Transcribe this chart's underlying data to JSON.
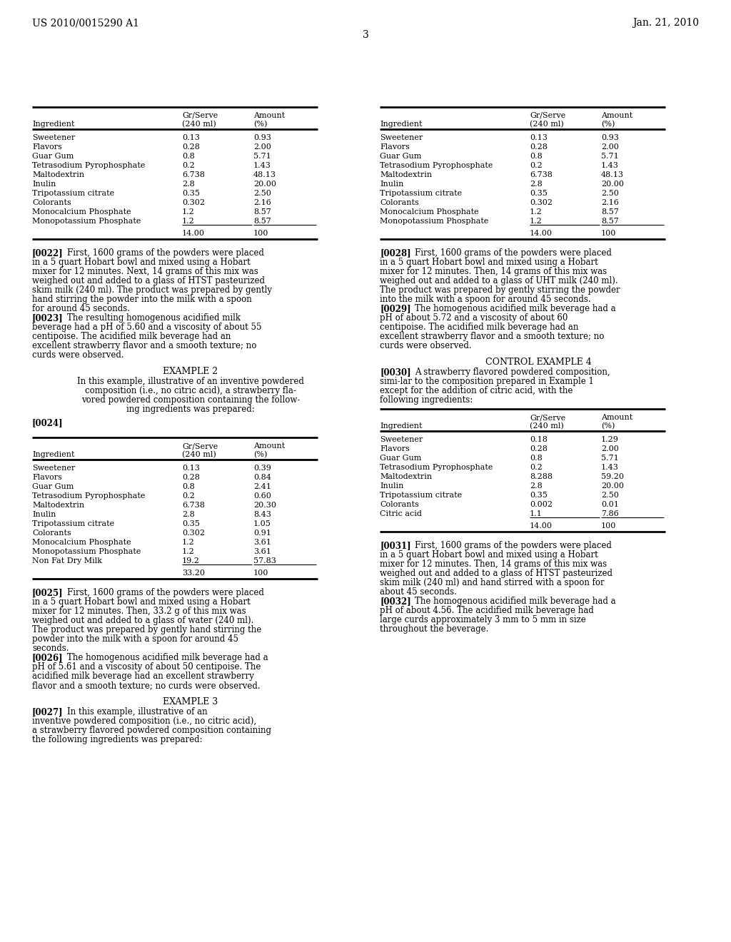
{
  "header_left": "US 2010/0015290 A1",
  "header_right": "Jan. 21, 2010",
  "page_number": "3",
  "bg_color": "#ffffff",
  "table1_headers": [
    "Ingredient",
    "Gr/Serve\n(240 ml)",
    "Amount\n(%)"
  ],
  "table1_rows": [
    [
      "Sweetener",
      "0.13",
      "0.93"
    ],
    [
      "Flavors",
      "0.28",
      "2.00"
    ],
    [
      "Guar Gum",
      "0.8",
      "5.71"
    ],
    [
      "Tetrasodium Pyrophosphate",
      "0.2",
      "1.43"
    ],
    [
      "Maltodextrin",
      "6.738",
      "48.13"
    ],
    [
      "Inulin",
      "2.8",
      "20.00"
    ],
    [
      "Tripotassium citrate",
      "0.35",
      "2.50"
    ],
    [
      "Colorants",
      "0.302",
      "2.16"
    ],
    [
      "Monocalcium Phosphate",
      "1.2",
      "8.57"
    ],
    [
      "Monopotassium Phosphate",
      "1.2",
      "8.57"
    ]
  ],
  "table1_total": [
    "",
    "14.00",
    "100"
  ],
  "para_0022": "[0022]    First, 1600 grams of the powders were placed in a 5 quart Hobart bowl and mixed using a Hobart mixer for 12 minutes. Next, 14 grams of this mix was weighed out and added to a glass of HTST pasteurized skim milk (240 ml). The product was prepared by gently hand stirring the powder into the milk with a spoon for around 45 seconds.",
  "para_0023": "[0023]    The resulting homogenous acidified milk beverage had a pH of 5.60 and a viscosity of about 55 centipoise. The acidified milk beverage had an excellent strawberry flavor and a smooth texture; no curds were observed.",
  "example2_title": "EXAMPLE 2",
  "example2_lines": [
    "In this example, illustrative of an inventive powdered",
    "composition (i.e., no citric acid), a strawberry fla-",
    "vored powdered composition containing the follow-",
    "ing ingredients was prepared:"
  ],
  "para_0024_label": "[0024]",
  "table2_headers": [
    "Ingredient",
    "Gr/Serve\n(240 ml)",
    "Amount\n(%)"
  ],
  "table2_rows": [
    [
      "Sweetener",
      "0.13",
      "0.39"
    ],
    [
      "Flavors",
      "0.28",
      "0.84"
    ],
    [
      "Guar Gum",
      "0.8",
      "2.41"
    ],
    [
      "Tetrasodium Pyrophosphate",
      "0.2",
      "0.60"
    ],
    [
      "Maltodextrin",
      "6.738",
      "20.30"
    ],
    [
      "Inulin",
      "2.8",
      "8.43"
    ],
    [
      "Tripotassium citrate",
      "0.35",
      "1.05"
    ],
    [
      "Colorants",
      "0.302",
      "0.91"
    ],
    [
      "Monocalcium Phosphate",
      "1.2",
      "3.61"
    ],
    [
      "Monopotassium Phosphate",
      "1.2",
      "3.61"
    ],
    [
      "Non Fat Dry Milk",
      "19.2",
      "57.83"
    ]
  ],
  "table2_total": [
    "",
    "33.20",
    "100"
  ],
  "para_0025": "[0025]    First, 1600 grams of the powders were placed in a 5 quart Hobart bowl and mixed using a Hobart mixer for 12 minutes. Then, 33.2 g of this mix was weighed out and added to a glass of water (240 ml). The product was prepared by gently hand stirring the powder into the milk with a spoon for around 45 seconds.",
  "para_0026": "[0026]    The homogenous acidified milk beverage had a pH of 5.61 and a viscosity of about 50 centipoise. The acidified milk beverage had an excellent strawberry flavor and a smooth texture; no curds were observed.",
  "example3_title": "EXAMPLE 3",
  "para_0027": "[0027]    In this example, illustrative of an inventive powdered composition (i.e., no citric acid), a strawberry flavored powdered composition containing the following ingredients was prepared:",
  "table3_headers": [
    "Ingredient",
    "Gr/Serve\n(240 ml)",
    "Amount\n(%)"
  ],
  "table3_rows": [
    [
      "Sweetener",
      "0.13",
      "0.93"
    ],
    [
      "Flavors",
      "0.28",
      "2.00"
    ],
    [
      "Guar Gum",
      "0.8",
      "5.71"
    ],
    [
      "Tetrasodium Pyrophosphate",
      "0.2",
      "1.43"
    ],
    [
      "Maltodextrin",
      "6.738",
      "48.13"
    ],
    [
      "Inulin",
      "2.8",
      "20.00"
    ],
    [
      "Tripotassium citrate",
      "0.35",
      "2.50"
    ],
    [
      "Colorants",
      "0.302",
      "2.16"
    ],
    [
      "Monocalcium Phosphate",
      "1.2",
      "8.57"
    ],
    [
      "Monopotassium Phosphate",
      "1.2",
      "8.57"
    ]
  ],
  "table3_total": [
    "",
    "14.00",
    "100"
  ],
  "para_0028": "[0028]    First, 1600 grams of the powders were placed in a 5 quart Hobart bowl and mixed using a Hobart mixer for 12 minutes. Then, 14 grams of this mix was weighed out and added to a glass of UHT milk (240 ml). The product was prepared by gently stirring the powder into the milk with a spoon for around 45 seconds.",
  "para_0029": "[0029]    The homogenous acidified milk beverage had a pH of about 5.72 and a viscosity of about 60 centipoise. The acidified milk beverage had an excellent strawberry flavor and a smooth texture; no curds were observed.",
  "control_example4_title": "CONTROL EXAMPLE 4",
  "para_0030": "[0030]    A strawberry flavored powdered composition, simi-lar to the composition prepared in Example 1 except for the addition of citric acid, with the following ingredients:",
  "table4_headers": [
    "Ingredient",
    "Gr/Serve\n(240 ml)",
    "Amount\n(%)"
  ],
  "table4_rows": [
    [
      "Sweetener",
      "0.18",
      "1.29"
    ],
    [
      "Flavors",
      "0.28",
      "2.00"
    ],
    [
      "Guar Gum",
      "0.8",
      "5.71"
    ],
    [
      "Tetrasodium Pyrophosphate",
      "0.2",
      "1.43"
    ],
    [
      "Maltodextrin",
      "8.288",
      "59.20"
    ],
    [
      "Inulin",
      "2.8",
      "20.00"
    ],
    [
      "Tripotassium citrate",
      "0.35",
      "2.50"
    ],
    [
      "Colorants",
      "0.002",
      "0.01"
    ],
    [
      "Citric acid",
      "1.1",
      "7.86"
    ]
  ],
  "table4_total": [
    "",
    "14.00",
    "100"
  ],
  "para_0031": "[0031]    First, 1600 grams of the powders were placed in a 5 quart Hobart bowl and mixed using a Hobart mixer for 12 minutes. Then, 14 grams of this mix was weighed out and added to a glass of HTST pasteurized skim milk (240 ml) and hand stirred with a spoon for about 45 seconds.",
  "para_0032": "[0032]    The homogenous acidified milk beverage had a pH of about 4.56. The acidified milk beverage had large curds approximately 3 mm to 5 mm in size throughout the beverage."
}
